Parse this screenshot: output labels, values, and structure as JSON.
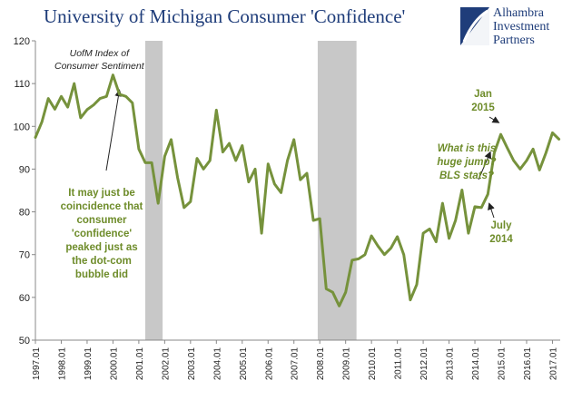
{
  "title": "University of Michigan Consumer 'Confidence'",
  "logo": {
    "line1": "Alhambra",
    "line2": "Investment",
    "line3": "Partners",
    "color": "#1f3d7a"
  },
  "chart_data": {
    "type": "line",
    "series": [
      {
        "name": "UofM Index of Consumer Sentiment",
        "color": "#76923c",
        "x": [
          1997.0,
          1997.25,
          1997.5,
          1997.75,
          1998.0,
          1998.25,
          1998.5,
          1998.75,
          1999.0,
          1999.25,
          1999.5,
          1999.75,
          2000.0,
          2000.25,
          2000.5,
          2000.75,
          2001.0,
          2001.25,
          2001.5,
          2001.75,
          2002.0,
          2002.25,
          2002.5,
          2002.75,
          2003.0,
          2003.25,
          2003.5,
          2003.75,
          2004.0,
          2004.25,
          2004.5,
          2004.75,
          2005.0,
          2005.25,
          2005.5,
          2005.75,
          2006.0,
          2006.25,
          2006.5,
          2006.75,
          2007.0,
          2007.25,
          2007.5,
          2007.75,
          2008.0,
          2008.25,
          2008.5,
          2008.75,
          2009.0,
          2009.25,
          2009.5,
          2009.75,
          2010.0,
          2010.25,
          2010.5,
          2010.75,
          2011.0,
          2011.25,
          2011.5,
          2011.75,
          2012.0,
          2012.25,
          2012.5,
          2012.75,
          2013.0,
          2013.25,
          2013.5,
          2013.75,
          2014.0,
          2014.25,
          2014.5,
          2014.75,
          2015.0,
          2015.25,
          2015.5,
          2015.75,
          2016.0,
          2016.25,
          2016.5,
          2016.75,
          2017.0,
          2017.25
        ],
        "y": [
          97.4,
          101.0,
          106.5,
          104.0,
          107.0,
          104.5,
          110.0,
          102.0,
          103.9,
          105.0,
          106.5,
          107.0,
          112.0,
          107.5,
          107.0,
          105.5,
          94.7,
          91.5,
          91.5,
          82.0,
          93.0,
          96.9,
          88.0,
          81.0,
          82.4,
          92.5,
          90.0,
          92.0,
          103.8,
          94.0,
          96.0,
          92.0,
          95.5,
          87.0,
          90.0,
          75.0,
          91.2,
          86.5,
          84.5,
          92.0,
          96.9,
          87.5,
          89.0,
          78.0,
          78.4,
          62.0,
          61.2,
          58.0,
          61.2,
          68.7,
          69.0,
          70.0,
          74.4,
          72.0,
          70.0,
          71.5,
          74.2,
          70.0,
          59.4,
          63.0,
          75.0,
          76.0,
          73.0,
          82.0,
          73.8,
          78.0,
          85.1,
          75.0,
          81.2,
          81.0,
          84.1,
          93.8,
          98.1,
          95.0,
          92.0,
          90.0,
          92.0,
          94.7,
          89.8,
          93.8,
          98.5,
          97.0
        ]
      }
    ],
    "x_tick_labels": [
      "1997.01",
      "1998.01",
      "1999.01",
      "2000.01",
      "2001.01",
      "2002.01",
      "2003.01",
      "2004.01",
      "2005.01",
      "2006.01",
      "2007.01",
      "2008.01",
      "2009.01",
      "2010.01",
      "2011.01",
      "2012.01",
      "2013.01",
      "2014.01",
      "2015.01",
      "2016.01",
      "2017.01"
    ],
    "y_ticks": [
      50,
      60,
      70,
      80,
      90,
      100,
      110,
      120
    ],
    "ylim": [
      50,
      120
    ],
    "xlim": [
      1997.0,
      2017.3
    ],
    "recessions": [
      [
        2001.25,
        2001.92
      ],
      [
        2007.92,
        2009.42
      ]
    ],
    "recession_color": "#c8c8c8",
    "grid": false
  },
  "annotations": {
    "series_label_line1": "UofM Index of",
    "series_label_line2": "Consumer Sentiment",
    "dotcom_line1": "It may just be",
    "dotcom_line2": "coincidence that",
    "dotcom_line3": "consumer",
    "dotcom_line4": "'confidence'",
    "dotcom_line5": "peaked just as",
    "dotcom_line6": "the dot-com",
    "dotcom_line7": "bubble did",
    "jan_line1": "Jan",
    "jan_line2": "2015",
    "jump_line1": "What is this",
    "jump_line2": "huge jump?",
    "jump_line3": "BLS stats?",
    "july_line1": "July",
    "july_line2": "2014"
  }
}
